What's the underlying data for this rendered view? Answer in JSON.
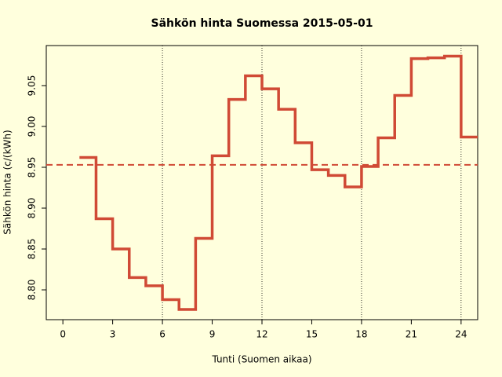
{
  "chart_data": {
    "type": "step",
    "title": "Sähkön hinta Suomessa 2015-05-01",
    "x_label": "Tunti (Suomen aikaa)",
    "y_label": "Sähkön hinta (c/(kWh)",
    "x": [
      1,
      2,
      3,
      4,
      5,
      6,
      7,
      8,
      9,
      10,
      11,
      12,
      13,
      14,
      15,
      16,
      17,
      18,
      19,
      20,
      21,
      22,
      23,
      24,
      25
    ],
    "values": [
      8.962,
      8.887,
      8.85,
      8.815,
      8.805,
      8.788,
      8.776,
      8.863,
      8.964,
      9.033,
      9.062,
      9.046,
      9.021,
      8.98,
      8.947,
      8.94,
      8.926,
      8.951,
      8.986,
      9.038,
      9.083,
      9.084,
      9.086,
      8.987,
      8.987
    ],
    "color": "#d04a35",
    "mean_line": 8.953,
    "vlines": [
      6,
      12,
      18,
      24
    ],
    "xlim": [
      -1,
      25
    ],
    "ylim": [
      8.7635,
      9.099
    ],
    "xticks": [
      0,
      3,
      6,
      9,
      12,
      15,
      18,
      21,
      24
    ],
    "yticks": [
      {
        "value": 8.8,
        "label": "8.80"
      },
      8.85,
      {
        "value": 8.9,
        "label": "8.90"
      },
      8.95,
      {
        "value": 9.0,
        "label": "9.00"
      },
      9.05
    ]
  }
}
